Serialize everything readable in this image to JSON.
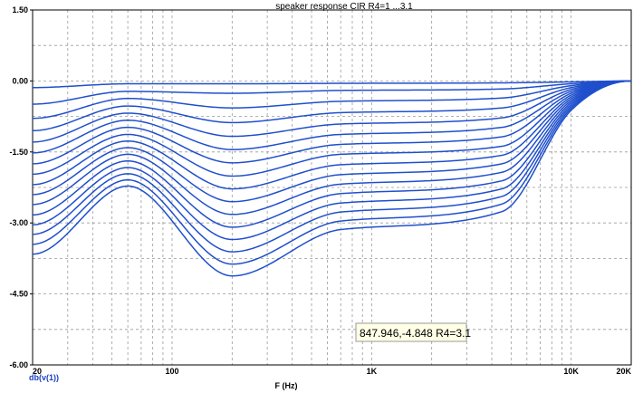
{
  "chart_data": {
    "type": "line",
    "title": "speaker response CIR R4=1 ...3.1",
    "xlabel": "F (Hz)",
    "ylabel": "",
    "x_scale": "log",
    "xlim": [
      20,
      20000
    ],
    "ylim": [
      -6.0,
      1.5
    ],
    "x_tick_labels": [
      {
        "value": 20,
        "label": "20"
      },
      {
        "value": 100,
        "label": "100"
      },
      {
        "value": 1000,
        "label": "1K"
      },
      {
        "value": 10000,
        "label": "10K"
      },
      {
        "value": 20000,
        "label": "20K"
      }
    ],
    "y_tick_labels": [
      {
        "value": 1.5,
        "label": "1.50"
      },
      {
        "value": 0.0,
        "label": "0.00"
      },
      {
        "value": -1.5,
        "label": "-1.50"
      },
      {
        "value": -3.0,
        "label": "-3.00"
      },
      {
        "value": -4.5,
        "label": "-4.50"
      },
      {
        "value": -6.0,
        "label": "-6.00"
      }
    ],
    "grid": true,
    "probe_label": "db(v(1))",
    "series_color": "#1f4fcc",
    "x": [
      20,
      60,
      200,
      700,
      4500,
      10000,
      20000
    ],
    "series": [
      {
        "values": [
          -0.14,
          -0.06,
          -0.06,
          -0.05,
          -0.04,
          -0.02,
          0.0
        ]
      },
      {
        "values": [
          -0.49,
          -0.22,
          -0.26,
          -0.2,
          -0.17,
          -0.06,
          0.0
        ]
      },
      {
        "values": [
          -0.79,
          -0.37,
          -0.57,
          -0.43,
          -0.36,
          -0.1,
          0.0
        ]
      },
      {
        "values": [
          -1.05,
          -0.53,
          -0.88,
          -0.67,
          -0.57,
          -0.14,
          0.0
        ]
      },
      {
        "values": [
          -1.29,
          -0.68,
          -1.17,
          -0.91,
          -0.78,
          -0.18,
          0.0
        ]
      },
      {
        "values": [
          -1.52,
          -0.83,
          -1.45,
          -1.13,
          -0.98,
          -0.22,
          0.0
        ]
      },
      {
        "values": [
          -1.75,
          -0.98,
          -1.73,
          -1.34,
          -1.18,
          -0.26,
          0.0
        ]
      },
      {
        "values": [
          -1.97,
          -1.13,
          -2.01,
          -1.55,
          -1.38,
          -0.3,
          0.0
        ]
      },
      {
        "values": [
          -2.19,
          -1.27,
          -2.28,
          -1.77,
          -1.57,
          -0.34,
          0.0
        ]
      },
      {
        "values": [
          -2.4,
          -1.41,
          -2.55,
          -1.98,
          -1.75,
          -0.38,
          0.0
        ]
      },
      {
        "values": [
          -2.61,
          -1.55,
          -2.82,
          -2.18,
          -1.93,
          -0.42,
          0.0
        ]
      },
      {
        "values": [
          -2.83,
          -1.69,
          -3.09,
          -2.38,
          -2.11,
          -0.46,
          0.0
        ]
      },
      {
        "values": [
          -3.04,
          -1.83,
          -3.35,
          -2.58,
          -2.28,
          -0.5,
          0.0
        ]
      },
      {
        "values": [
          -3.24,
          -1.96,
          -3.61,
          -2.77,
          -2.44,
          -0.54,
          0.0
        ]
      },
      {
        "values": [
          -3.45,
          -2.09,
          -3.87,
          -2.96,
          -2.6,
          -0.58,
          0.0
        ]
      },
      {
        "values": [
          -3.66,
          -2.22,
          -4.12,
          -3.14,
          -2.76,
          -0.62,
          0.0
        ]
      }
    ],
    "annotation": {
      "text": "847.946,-4.848 R4=3.1",
      "x": 847.946,
      "y": -4.848
    }
  }
}
